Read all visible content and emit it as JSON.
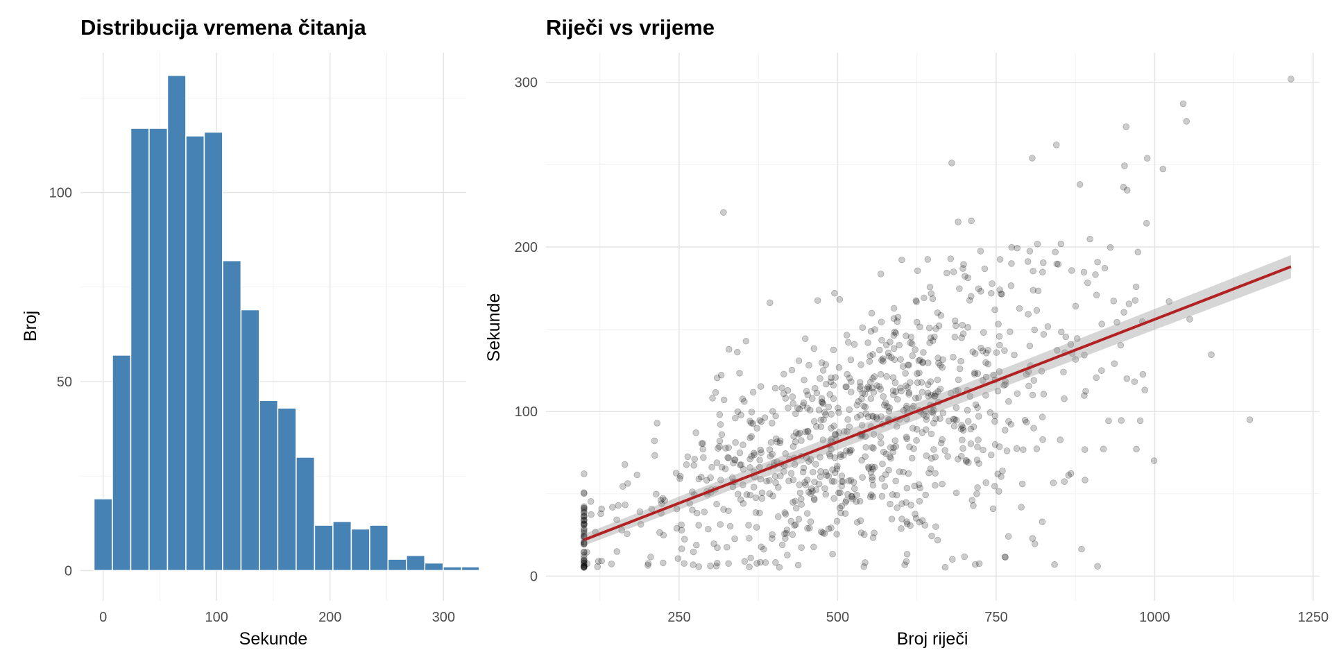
{
  "chart_data": [
    {
      "type": "bar",
      "subtype": "histogram",
      "title": "Distribucija vremena čitanja",
      "xlabel": "Sekunde",
      "ylabel": "Broj",
      "xlim": [
        -20,
        320
      ],
      "ylim": [
        -8,
        137
      ],
      "xticks": [
        0,
        100,
        200,
        300
      ],
      "yticks": [
        0,
        50,
        100
      ],
      "bin_width": 16.2,
      "bins": [
        {
          "x": 0.0,
          "count": 19
        },
        {
          "x": 16.2,
          "count": 57
        },
        {
          "x": 32.4,
          "count": 117
        },
        {
          "x": 48.6,
          "count": 117
        },
        {
          "x": 64.8,
          "count": 131
        },
        {
          "x": 81.0,
          "count": 115
        },
        {
          "x": 97.2,
          "count": 116
        },
        {
          "x": 113.4,
          "count": 82
        },
        {
          "x": 129.6,
          "count": 69
        },
        {
          "x": 145.8,
          "count": 45
        },
        {
          "x": 162.0,
          "count": 43
        },
        {
          "x": 178.2,
          "count": 30
        },
        {
          "x": 194.4,
          "count": 12
        },
        {
          "x": 210.6,
          "count": 13
        },
        {
          "x": 226.8,
          "count": 11
        },
        {
          "x": 243.0,
          "count": 12
        },
        {
          "x": 259.2,
          "count": 3
        },
        {
          "x": 275.4,
          "count": 4
        },
        {
          "x": 291.6,
          "count": 2
        },
        {
          "x": 307.8,
          "count": 1
        },
        {
          "x": 324.0,
          "count": 1
        }
      ],
      "bar_color": "#4682B4",
      "grid": true
    },
    {
      "type": "scatter",
      "title": "Riječi vs vrijeme",
      "xlabel": "Broj riječi",
      "ylabel": "Sekunde",
      "xlim": [
        40,
        1260
      ],
      "ylim": [
        -15,
        318
      ],
      "xticks": [
        250,
        500,
        750,
        1000,
        1250
      ],
      "yticks": [
        0,
        100,
        200,
        300
      ],
      "point_color": "#000000",
      "point_alpha": 0.2,
      "n_points": 1000,
      "notable_points": [
        {
          "x": 1215,
          "y": 302
        },
        {
          "x": 1045,
          "y": 287
        },
        {
          "x": 955,
          "y": 273
        },
        {
          "x": 845,
          "y": 262
        },
        {
          "x": 680,
          "y": 251
        },
        {
          "x": 320,
          "y": 221
        },
        {
          "x": 1150,
          "y": 95
        },
        {
          "x": 910,
          "y": 6
        }
      ],
      "trend": {
        "type": "linear",
        "color": "#B22222",
        "ci_color": "#999999",
        "x": [
          100,
          1215
        ],
        "y": [
          22,
          188
        ],
        "ci_halfwidth": [
          3.5,
          7
        ]
      },
      "grid": true
    }
  ]
}
